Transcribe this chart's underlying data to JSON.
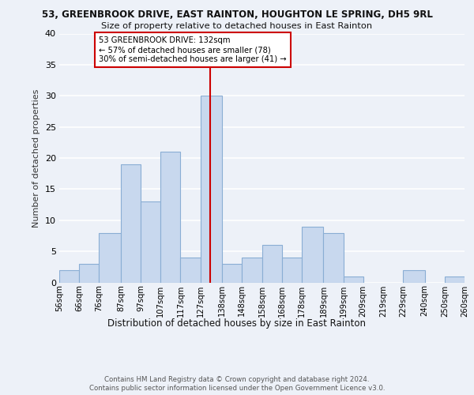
{
  "title_line1": "53, GREENBROOK DRIVE, EAST RAINTON, HOUGHTON LE SPRING, DH5 9RL",
  "title_line2": "Size of property relative to detached houses in East Rainton",
  "xlabel": "Distribution of detached houses by size in East Rainton",
  "ylabel": "Number of detached properties",
  "bin_edges": [
    56,
    66,
    76,
    87,
    97,
    107,
    117,
    127,
    138,
    148,
    158,
    168,
    178,
    189,
    199,
    209,
    219,
    229,
    240,
    250,
    260
  ],
  "bar_heights": [
    2,
    3,
    8,
    19,
    13,
    21,
    4,
    30,
    3,
    4,
    6,
    4,
    9,
    8,
    1,
    0,
    0,
    2,
    0,
    1
  ],
  "bar_color": "#c8d8ee",
  "bar_edge_color": "#8aaed4",
  "property_size": 132,
  "vline_color": "#cc0000",
  "annotation_line1": "53 GREENBROOK DRIVE: 132sqm",
  "annotation_line2": "← 57% of detached houses are smaller (78)",
  "annotation_line3": "30% of semi-detached houses are larger (41) →",
  "annotation_box_color": "#ffffff",
  "annotation_box_edge": "#cc0000",
  "ylim": [
    0,
    40
  ],
  "yticks": [
    0,
    5,
    10,
    15,
    20,
    25,
    30,
    35,
    40
  ],
  "background_color": "#edf1f8",
  "grid_color": "#ffffff",
  "footer_line1": "Contains HM Land Registry data © Crown copyright and database right 2024.",
  "footer_line2": "Contains public sector information licensed under the Open Government Licence v3.0."
}
